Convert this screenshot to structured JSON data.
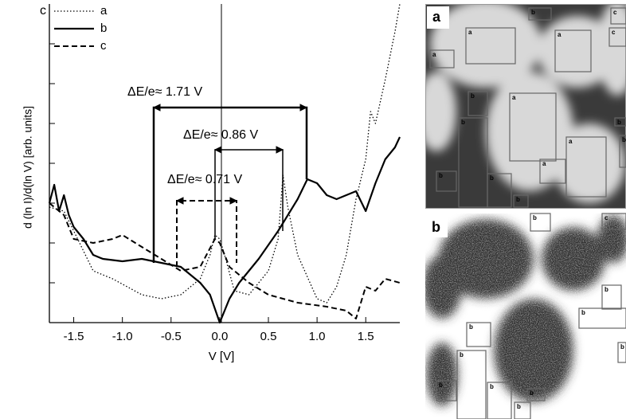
{
  "chart_data": {
    "type": "line",
    "panel_label": "c",
    "xlabel": "V  [V]",
    "ylabel": "d (ln I)/d(ln V)   [arb. units]",
    "xlim": [
      -1.75,
      1.85
    ],
    "ylim": [
      0,
      8
    ],
    "xticks": [
      -1.5,
      {
        "value": -1.0,
        "label": "-1.0"
      },
      -0.5,
      {
        "value": 0.0,
        "label": "0.0"
      },
      0.5,
      {
        "value": 1.0,
        "label": "1.0"
      },
      1.5
    ],
    "yticks": [
      1,
      2,
      3,
      4,
      5,
      6,
      7
    ],
    "legend": "top-left",
    "annotations": [
      "ΔE/e≈  1.71 V",
      "ΔE/e≈ 0.86 V",
      "ΔE/e≈ 0.71 V"
    ],
    "series": [
      {
        "name": "a",
        "color": "#000000",
        "dash": "dotted",
        "x": [
          -1.75,
          -1.6,
          -1.5,
          -1.3,
          -1.1,
          -0.8,
          -0.6,
          -0.4,
          -0.2,
          -0.1,
          -0.05,
          0.0,
          0.05,
          0.15,
          0.3,
          0.5,
          0.6,
          0.65,
          0.7,
          0.8,
          1.0,
          1.1,
          1.2,
          1.3,
          1.4,
          1.5,
          1.55,
          1.6,
          1.7,
          1.8,
          1.85
        ],
        "values": [
          2.9,
          2.8,
          2.3,
          1.3,
          1.1,
          0.7,
          0.6,
          0.7,
          1.1,
          1.7,
          2.2,
          2.1,
          1.7,
          0.8,
          0.7,
          1.3,
          2.1,
          3.7,
          2.9,
          1.7,
          0.6,
          0.5,
          0.9,
          1.7,
          3.1,
          4.1,
          5.3,
          5.0,
          6.1,
          7.3,
          8.0
        ]
      },
      {
        "name": "b",
        "color": "#000000",
        "dash": "solid",
        "x": [
          -1.75,
          -1.7,
          -1.65,
          -1.6,
          -1.55,
          -1.5,
          -1.4,
          -1.3,
          -1.2,
          -1.0,
          -0.8,
          -0.6,
          -0.4,
          -0.2,
          -0.1,
          0.0,
          0.1,
          0.2,
          0.4,
          0.6,
          0.8,
          0.9,
          1.0,
          1.1,
          1.2,
          1.4,
          1.5,
          1.6,
          1.7,
          1.8,
          1.85
        ],
        "values": [
          3.0,
          3.46,
          2.8,
          3.2,
          2.7,
          2.4,
          2.1,
          1.7,
          1.6,
          1.54,
          1.6,
          1.5,
          1.4,
          1.0,
          0.7,
          0.0,
          0.6,
          1.0,
          1.6,
          2.3,
          3.1,
          3.6,
          3.5,
          3.2,
          3.1,
          3.3,
          2.8,
          3.5,
          4.1,
          4.4,
          4.66
        ]
      },
      {
        "name": "c",
        "color": "#000000",
        "dash": "dashed",
        "x": [
          -1.75,
          -1.6,
          -1.5,
          -1.3,
          -1.1,
          -1.0,
          -0.8,
          -0.6,
          -0.4,
          -0.2,
          -0.05,
          0.0,
          0.1,
          0.3,
          0.5,
          0.8,
          1.1,
          1.3,
          1.4,
          1.5,
          1.6,
          1.7,
          1.85
        ],
        "values": [
          3.0,
          2.7,
          2.1,
          2.0,
          2.1,
          2.2,
          1.9,
          1.6,
          1.3,
          1.4,
          2.1,
          2.0,
          1.4,
          1.0,
          0.7,
          0.5,
          0.4,
          0.3,
          0.1,
          0.9,
          0.8,
          1.1,
          1.0
        ]
      }
    ]
  },
  "images": [
    {
      "label": "a",
      "boxes": [
        "a",
        "a",
        "a",
        "b",
        "c",
        "c",
        "b",
        "a",
        "b",
        "b",
        "b",
        "a",
        "a",
        "b",
        "b",
        "b"
      ]
    },
    {
      "label": "b",
      "boxes": [
        "b",
        "c",
        "b",
        "b",
        "b",
        "b",
        "b",
        "b",
        "b",
        "b",
        "b"
      ]
    }
  ]
}
